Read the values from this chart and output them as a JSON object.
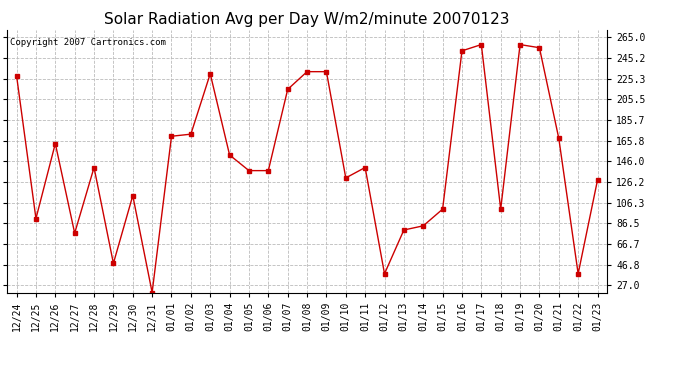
{
  "title": "Solar Radiation Avg per Day W/m2/minute 20070123",
  "copyright": "Copyright 2007 Cartronics.com",
  "dates": [
    "12/24",
    "12/25",
    "12/26",
    "12/27",
    "12/28",
    "12/29",
    "12/30",
    "12/31",
    "01/01",
    "01/02",
    "01/03",
    "01/04",
    "01/05",
    "01/06",
    "01/07",
    "01/08",
    "01/09",
    "01/10",
    "01/11",
    "01/12",
    "01/13",
    "01/14",
    "01/15",
    "01/16",
    "01/17",
    "01/18",
    "01/19",
    "01/20",
    "01/21",
    "01/22",
    "01/23"
  ],
  "values": [
    228,
    91,
    163,
    77,
    140,
    48,
    113,
    20,
    170,
    172,
    230,
    152,
    137,
    137,
    215,
    232,
    232,
    130,
    140,
    38,
    80,
    84,
    100,
    252,
    258,
    100,
    258,
    255,
    168,
    38,
    128
  ],
  "line_color": "#cc0000",
  "marker": "s",
  "marker_size": 2.5,
  "bg_color": "#ffffff",
  "plot_bg_color": "#ffffff",
  "grid_color": "#bbbbbb",
  "yticks": [
    27.0,
    46.8,
    66.7,
    86.5,
    106.3,
    126.2,
    146.0,
    165.8,
    185.7,
    205.5,
    225.3,
    245.2,
    265.0
  ],
  "ylim": [
    20,
    272
  ],
  "title_fontsize": 11,
  "copyright_fontsize": 6.5,
  "tick_fontsize": 7
}
